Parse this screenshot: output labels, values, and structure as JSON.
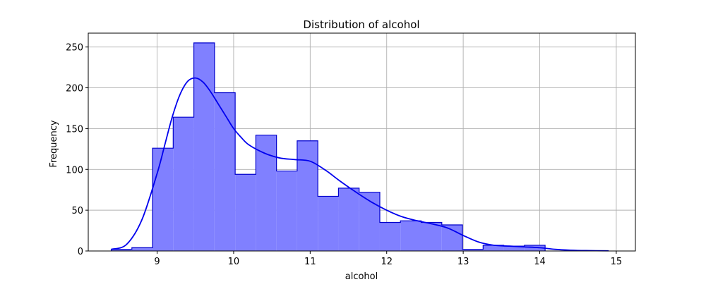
{
  "chart_data": {
    "type": "histogram",
    "title": "Distribution of alcohol",
    "xlabel": "alcohol",
    "ylabel": "Frequency",
    "xlim": [
      8.1,
      15.25
    ],
    "ylim": [
      0,
      267
    ],
    "xticks": [
      9,
      10,
      11,
      12,
      13,
      14,
      15
    ],
    "yticks": [
      0,
      50,
      100,
      150,
      200,
      250
    ],
    "grid": true,
    "fill_color": "#8080ff",
    "edge_color": "#0000cc",
    "kde_color": "#0000ee",
    "bin_edges": [
      8.4,
      8.67,
      8.94,
      9.21,
      9.48,
      9.75,
      10.02,
      10.29,
      10.56,
      10.83,
      11.1,
      11.37,
      11.64,
      11.91,
      12.18,
      12.45,
      12.72,
      12.99,
      13.26,
      13.53,
      13.8,
      14.07
    ],
    "counts": [
      2,
      4,
      126,
      164,
      255,
      194,
      94,
      142,
      98,
      135,
      67,
      77,
      72,
      35,
      37,
      35,
      32,
      2,
      7,
      6,
      7
    ],
    "kde": {
      "x": [
        8.4,
        8.6,
        8.8,
        9.0,
        9.1,
        9.2,
        9.3,
        9.4,
        9.5,
        9.6,
        9.7,
        9.8,
        9.9,
        10.0,
        10.1,
        10.2,
        10.4,
        10.6,
        10.8,
        11.0,
        11.2,
        11.4,
        11.6,
        11.8,
        12.0,
        12.2,
        12.4,
        12.6,
        12.8,
        13.0,
        13.2,
        13.4,
        13.6,
        13.8,
        14.0,
        14.2,
        14.4,
        14.6,
        14.9
      ],
      "y": [
        2,
        8,
        38,
        95,
        130,
        165,
        192,
        208,
        212,
        207,
        195,
        180,
        165,
        150,
        139,
        130,
        120,
        114,
        112,
        110,
        99,
        85,
        72,
        60,
        50,
        42,
        37,
        33,
        28,
        19,
        11,
        7,
        6,
        5,
        4,
        2,
        1,
        0.5,
        0.2
      ]
    }
  }
}
